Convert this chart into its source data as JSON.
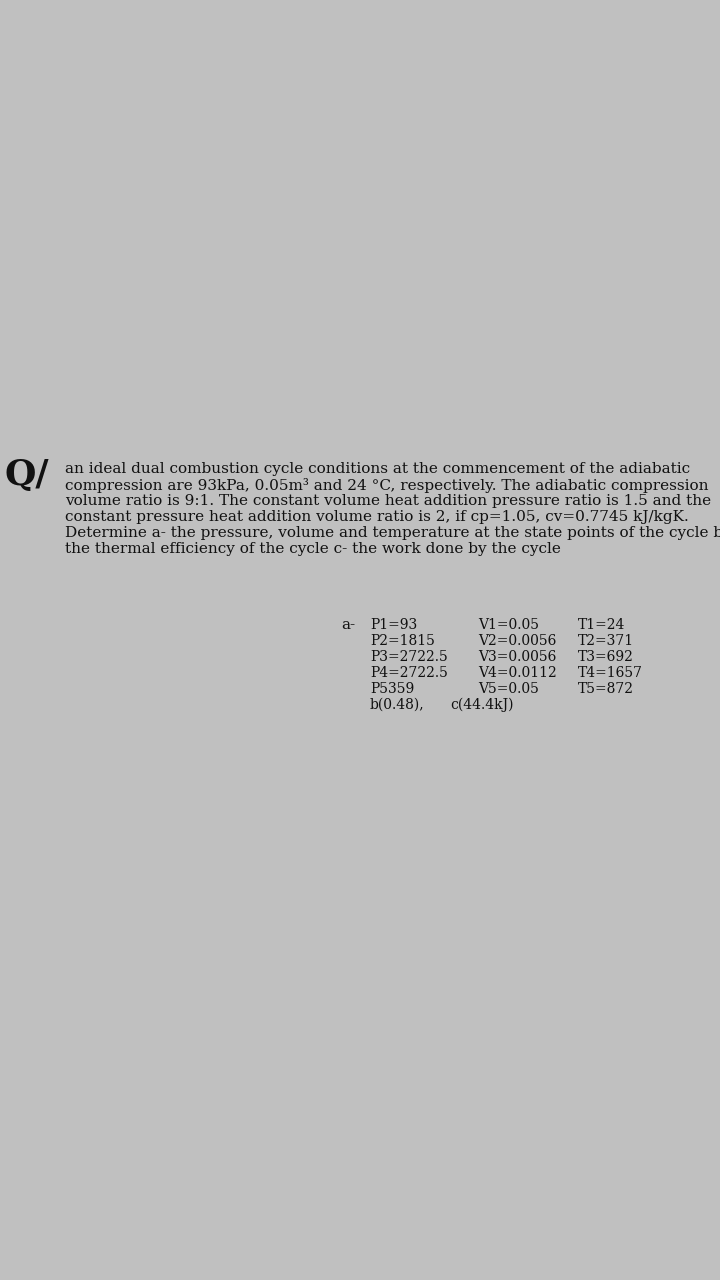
{
  "bg_color": "#c0c0c0",
  "text_color": "#111111",
  "question_symbol": "Q/",
  "question_symbol_fontsize": 26,
  "main_text_line1": "an ideal dual combustion cycle conditions at the commencement of the adiabatic",
  "main_text_line2": "compression are 93kPa, 0.05m³ and 24 °C, respectively. The adiabatic compression",
  "main_text_line3": "volume ratio is 9:1. The constant volume heat addition pressure ratio is 1.5 and the",
  "main_text_line4": "constant pressure heat addition volume ratio is 2, if cp=1.05, cv=0.7745 kJ/kgK.",
  "main_text_line5": "Determine a- the pressure, volume and temperature at the state points of the cycle b-",
  "main_text_line6": "the thermal efficiency of the cycle c- the work done by the cycle",
  "main_fontsize": 11.0,
  "results": [
    [
      "P1=93",
      "V1=0.05",
      "T1=24"
    ],
    [
      "P2=1815",
      "V2=0.0056",
      "T2=371"
    ],
    [
      "P3=2722.5",
      "V3=0.0056",
      "T3=692"
    ],
    [
      "P4=2722.5",
      "V4=0.0112",
      "T4=1657"
    ],
    [
      "P5359",
      "V5=0.05",
      "T5=872"
    ]
  ],
  "bottom_row": [
    "b(0.48),",
    "c(44.4kJ)"
  ],
  "results_fontsize": 10.0
}
